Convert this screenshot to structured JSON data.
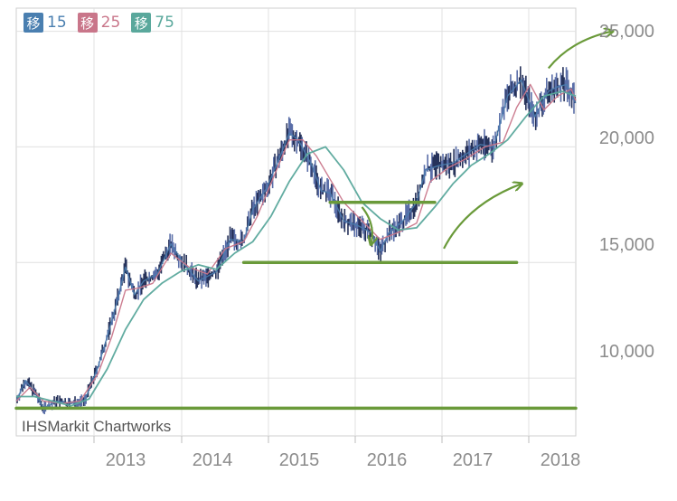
{
  "chart_data": {
    "type": "line",
    "xlabel": "",
    "ylabel": "",
    "watermark": "IHSMarkit Chartworks",
    "x_ticks": [
      "2013",
      "2014",
      "2015",
      "2016",
      "2017",
      "2018"
    ],
    "y_ticks": [
      "10,000",
      "15,000",
      "20,000",
      "25,000"
    ],
    "ylim": [
      7500,
      26000
    ],
    "xlim": [
      2012.0,
      2018.15
    ],
    "grid": true,
    "legend": {
      "position": "top-left",
      "items": [
        {
          "glyph": "移",
          "label": "15",
          "color": "#4a7fb0"
        },
        {
          "glyph": "移",
          "label": "25",
          "color": "#c9768a"
        },
        {
          "glyph": "移",
          "label": "75",
          "color": "#5aa89c"
        }
      ]
    },
    "series": [
      {
        "name": "15",
        "color": "#4a7fb0",
        "x": [
          2012.0,
          2012.1,
          2012.2,
          2012.3,
          2012.45,
          2012.6,
          2012.75,
          2012.9,
          2013.0,
          2013.1,
          2013.2,
          2013.3,
          2013.4,
          2013.55,
          2013.7,
          2013.85,
          2014.0,
          2014.2,
          2014.35,
          2014.5,
          2014.6,
          2014.75,
          2014.9,
          2015.0,
          2015.1,
          2015.25,
          2015.35,
          2015.45,
          2015.6,
          2015.75,
          2015.9,
          2016.0,
          2016.1,
          2016.25,
          2016.4,
          2016.5,
          2016.65,
          2016.8,
          2016.95,
          2017.1,
          2017.25,
          2017.4,
          2017.55,
          2017.7,
          2017.85,
          2017.95,
          2018.05,
          2018.15
        ],
        "values": [
          9000,
          9900,
          9400,
          8700,
          9000,
          8900,
          9000,
          10500,
          11800,
          13200,
          14800,
          13600,
          14200,
          14500,
          15800,
          14900,
          14200,
          14600,
          16000,
          15900,
          17300,
          18200,
          19600,
          20600,
          20300,
          19200,
          18100,
          18000,
          16800,
          16600,
          16300,
          15500,
          16300,
          16800,
          17600,
          19000,
          19200,
          19300,
          19700,
          20100,
          20000,
          22200,
          22900,
          21300,
          22400,
          22600,
          22700,
          21900
        ]
      },
      {
        "name": "25",
        "color": "#c9768a",
        "x": [
          2012.0,
          2012.15,
          2012.3,
          2012.5,
          2012.7,
          2012.9,
          2013.05,
          2013.2,
          2013.35,
          2013.5,
          2013.7,
          2013.9,
          2014.1,
          2014.3,
          2014.5,
          2014.65,
          2014.85,
          2015.0,
          2015.15,
          2015.3,
          2015.45,
          2015.6,
          2015.8,
          2016.0,
          2016.2,
          2016.4,
          2016.55,
          2016.75,
          2016.95,
          2017.15,
          2017.35,
          2017.5,
          2017.65,
          2017.8,
          2017.95,
          2018.1,
          2018.15
        ],
        "values": [
          9000,
          9600,
          9000,
          8900,
          9000,
          10200,
          11800,
          13800,
          13900,
          14100,
          15400,
          14800,
          14500,
          15600,
          15900,
          17000,
          18900,
          20300,
          20300,
          19600,
          18600,
          17600,
          16800,
          16000,
          16300,
          16700,
          18500,
          19100,
          19500,
          20000,
          20200,
          21700,
          22700,
          21600,
          22200,
          22500,
          22000
        ]
      },
      {
        "name": "75",
        "color": "#5aa89c",
        "x": [
          2012.0,
          2012.2,
          2012.4,
          2012.6,
          2012.8,
          2013.0,
          2013.2,
          2013.4,
          2013.6,
          2013.8,
          2014.0,
          2014.2,
          2014.4,
          2014.6,
          2014.8,
          2015.0,
          2015.2,
          2015.4,
          2015.6,
          2015.8,
          2016.0,
          2016.2,
          2016.4,
          2016.6,
          2016.8,
          2017.0,
          2017.2,
          2017.4,
          2017.6,
          2017.8,
          2018.0,
          2018.15
        ],
        "values": [
          9200,
          9200,
          9000,
          8800,
          9100,
          10400,
          12100,
          13400,
          14100,
          14600,
          14900,
          14700,
          15400,
          15900,
          17000,
          18500,
          19700,
          20000,
          19000,
          17600,
          16900,
          16400,
          16500,
          17400,
          18400,
          19200,
          19700,
          20300,
          21300,
          22200,
          22400,
          22200
        ]
      }
    ],
    "annotations": [
      {
        "type": "hline",
        "y": 8700,
        "x_from": 2012.0,
        "x_to": 2018.15,
        "color": "#6a9a3a"
      },
      {
        "type": "hline",
        "y": 15000,
        "x_from": 2014.5,
        "x_to": 2017.5,
        "color": "#6a9a3a"
      },
      {
        "type": "hline",
        "y": 17600,
        "x_from": 2015.45,
        "x_to": 2016.6,
        "color": "#6a9a3a"
      },
      {
        "type": "arrow",
        "from": [
          2015.8,
          17400
        ],
        "to": [
          2015.9,
          15800
        ],
        "color": "#6a9a3a"
      },
      {
        "type": "arrow",
        "from": [
          2016.7,
          15600
        ],
        "to": [
          2017.55,
          18400
        ],
        "color": "#6a9a3a"
      },
      {
        "type": "arrow",
        "from": [
          2017.85,
          23400
        ],
        "to": [
          2018.55,
          25000
        ],
        "color": "#6a9a3a"
      }
    ]
  }
}
